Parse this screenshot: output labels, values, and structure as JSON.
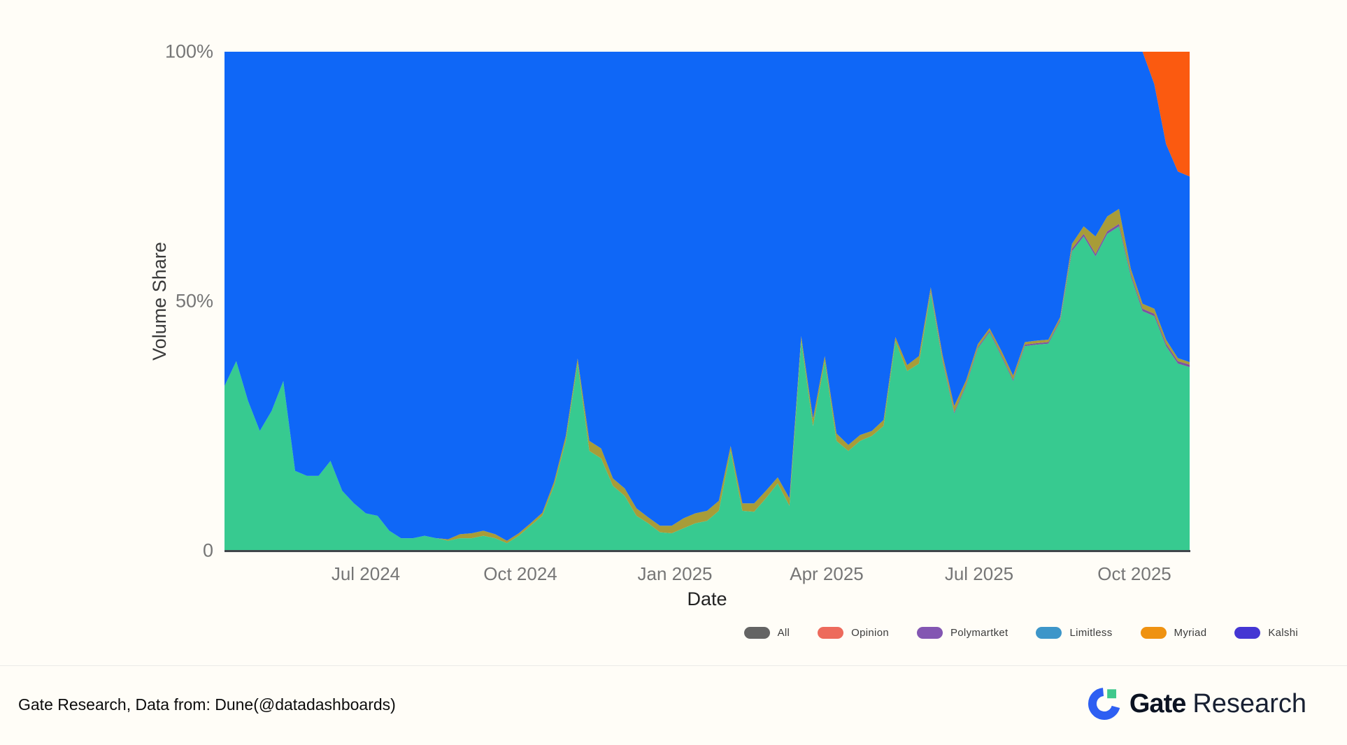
{
  "legend": {
    "items": [
      {
        "label": "All",
        "color": "#646464"
      },
      {
        "label": "Opinion",
        "color": "#ed6a5c"
      },
      {
        "label": "Polymartket",
        "color": "#8356b2"
      },
      {
        "label": "Limitless",
        "color": "#3d96c9"
      },
      {
        "label": "Myriad",
        "color": "#ef9211"
      },
      {
        "label": "Kalshi",
        "color": "#4436d3"
      }
    ]
  },
  "footer": {
    "source_text": "Gate Research, Data from: Dune(@datadashboards)",
    "logo": {
      "brand_bold": "Gate",
      "brand_regular": "Research"
    }
  },
  "chart_data": {
    "type": "area",
    "stacked": true,
    "normalized_percent": true,
    "title": "",
    "xlabel": "Date",
    "ylabel": "Volume Share",
    "ylim": [
      0,
      100
    ],
    "grid": false,
    "legend_position": "bottom-right",
    "y_ticks": [
      {
        "label": "0",
        "value": 0
      },
      {
        "label": "50%",
        "value": 50
      },
      {
        "label": "100%",
        "value": 100
      }
    ],
    "start_date": "2024-04-08",
    "interval_days": 7,
    "x_ticks": [
      {
        "label": "Jul 2024",
        "date": "2024-07-01"
      },
      {
        "label": "Oct 2024",
        "date": "2024-10-01"
      },
      {
        "label": "Jan 2025",
        "date": "2025-01-01"
      },
      {
        "label": "Apr 2025",
        "date": "2025-04-01"
      },
      {
        "label": "Jul 2025",
        "date": "2025-07-01"
      },
      {
        "label": "Oct 2025",
        "date": "2025-10-01"
      }
    ],
    "stack_order_bottom_to_top": [
      "Kalshi",
      "Limitless",
      "Myriad",
      "Polymarket",
      "Opinion"
    ],
    "series": [
      {
        "name": "Kalshi",
        "area_color": "#37ca90",
        "values": [
          33,
          38,
          30,
          24,
          28,
          34,
          16,
          15,
          15,
          18,
          12,
          9.5,
          7.5,
          7,
          4,
          2.5,
          2.5,
          3,
          2.5,
          2,
          2.5,
          2.5,
          3,
          2.5,
          1.5,
          3,
          5,
          7,
          13,
          22,
          37.5,
          20,
          18.5,
          13,
          11,
          7,
          5.5,
          3.7,
          3.5,
          4.5,
          5.5,
          6,
          8,
          20,
          8,
          7.8,
          10.5,
          13.5,
          9,
          42,
          25,
          38,
          22,
          20,
          22,
          23,
          25,
          42,
          36,
          37.5,
          51.7,
          38,
          27.5,
          33,
          40.5,
          43.8,
          39,
          34,
          41,
          41.3,
          41.5,
          46,
          60,
          63,
          59,
          63.5,
          65,
          55,
          48,
          47,
          41,
          37.5,
          36.8
        ]
      },
      {
        "name": "Limitless",
        "area_color": "#7b55a3",
        "values": [
          0,
          0,
          0,
          0,
          0,
          0,
          0,
          0,
          0,
          0,
          0,
          0,
          0,
          0,
          0,
          0,
          0,
          0,
          0,
          0,
          0,
          0,
          0,
          0,
          0,
          0,
          0,
          0,
          0,
          0,
          0,
          0,
          0,
          0,
          0,
          0,
          0,
          0,
          0,
          0,
          0,
          0,
          0,
          0,
          0,
          0,
          0,
          0,
          0,
          0,
          0,
          0,
          0,
          0,
          0,
          0,
          0,
          0,
          0,
          0,
          0.3,
          0.3,
          0.3,
          0.3,
          0.3,
          0.3,
          0.3,
          0.3,
          0.3,
          0.3,
          0.3,
          0.3,
          0.5,
          0.5,
          0.5,
          0.5,
          0.5,
          0.5,
          0.5,
          0.5,
          0.5,
          0.5,
          0.5
        ]
      },
      {
        "name": "Myriad",
        "area_color": "#a89c38",
        "values": [
          0,
          0,
          0,
          0,
          0,
          0,
          0,
          0,
          0,
          0,
          0,
          0,
          0,
          0,
          0,
          0,
          0,
          0,
          0,
          0.3,
          0.8,
          1,
          1,
          0.8,
          0.5,
          0.5,
          0.5,
          0.6,
          0.8,
          1,
          1,
          2,
          2,
          1.5,
          1.5,
          1.5,
          1.2,
          1.3,
          1.5,
          2,
          2,
          2,
          2,
          1,
          1.5,
          1.7,
          1.5,
          1.2,
          1.5,
          1,
          1.5,
          1,
          1.5,
          1.2,
          1.2,
          1,
          1.2,
          0.8,
          1.2,
          1.5,
          0.8,
          1,
          1.2,
          0.8,
          0.6,
          0.5,
          0.8,
          0.8,
          0.5,
          0.5,
          0.5,
          0.5,
          1,
          1.5,
          3.5,
          3,
          3,
          1,
          1,
          1,
          0.8,
          0.6,
          0.5
        ]
      },
      {
        "name": "Polymarket",
        "area_color": "#0f67f7",
        "values": [
          67,
          62,
          70,
          76,
          72,
          66,
          84,
          85,
          85,
          82,
          88,
          90.5,
          92.5,
          93,
          96,
          97.5,
          97.5,
          97,
          97.5,
          97.7,
          96.7,
          96.5,
          96,
          96.7,
          98,
          96.5,
          94.5,
          92.4,
          86.2,
          77,
          61.5,
          78,
          79.5,
          85.5,
          87.5,
          91.5,
          93.3,
          95,
          95,
          93.5,
          92.5,
          92,
          90,
          79,
          90.5,
          90.5,
          88,
          85.3,
          89.5,
          57,
          73.5,
          61,
          76.5,
          78.8,
          76.8,
          76,
          73.8,
          57.2,
          62.8,
          61,
          47.2,
          60.7,
          71,
          65.9,
          58.6,
          55.4,
          59.9,
          64.9,
          58.2,
          57.9,
          57.7,
          53.2,
          38.5,
          35,
          37,
          33,
          31.5,
          43.5,
          50.5,
          45,
          39.2,
          37.4,
          37.2
        ]
      },
      {
        "name": "Opinion",
        "area_color": "#fb5a10",
        "values": [
          0,
          0,
          0,
          0,
          0,
          0,
          0,
          0,
          0,
          0,
          0,
          0,
          0,
          0,
          0,
          0,
          0,
          0,
          0,
          0,
          0,
          0,
          0,
          0,
          0,
          0,
          0,
          0,
          0,
          0,
          0,
          0,
          0,
          0,
          0,
          0,
          0,
          0,
          0,
          0,
          0,
          0,
          0,
          0,
          0,
          0,
          0,
          0,
          0,
          0,
          0,
          0,
          0,
          0,
          0,
          0,
          0,
          0,
          0,
          0,
          0,
          0,
          0,
          0,
          0,
          0,
          0,
          0,
          0,
          0,
          0,
          0,
          0,
          0,
          0,
          0,
          0,
          0,
          0,
          6.5,
          18.5,
          24,
          25
        ]
      }
    ]
  }
}
